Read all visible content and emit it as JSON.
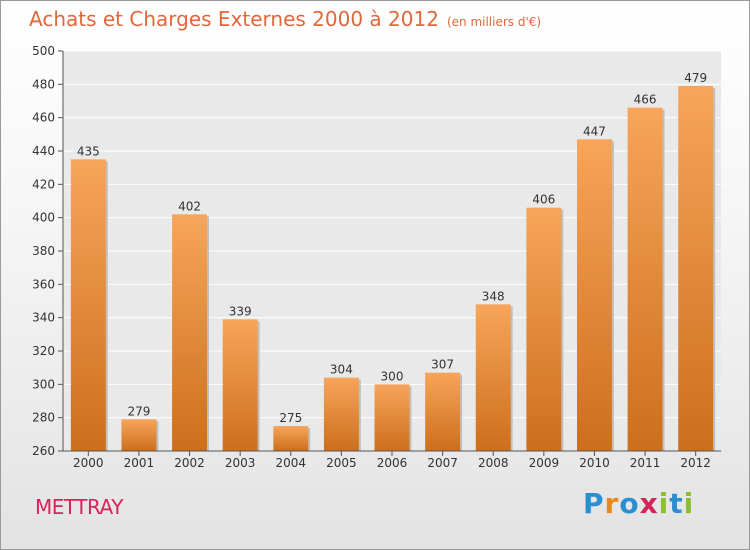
{
  "header": {
    "title": "Achats et Charges Externes 2000 à 2012",
    "unit": "(en milliers d'€)"
  },
  "footer": {
    "city": "METTRAY",
    "logo_text": "Proxiti"
  },
  "colors": {
    "bar_top": "#f7a55a",
    "bar_bottom": "#cc6f1c",
    "title": "#e2673a",
    "city": "#d6245a",
    "plot_background": "#e9e9e9",
    "grid": "#ffffff",
    "logo": [
      "#2a8fd1",
      "#e8891e",
      "#2a8fd1",
      "#d6245a",
      "#8cbf2e",
      "#2a8fd1",
      "#8cbf2e"
    ]
  },
  "chart_data": {
    "type": "bar",
    "title": "Achats et Charges Externes 2000 à 2012",
    "subtitle": "(en milliers d'€)",
    "categories": [
      "2000",
      "2001",
      "2002",
      "2003",
      "2004",
      "2005",
      "2006",
      "2007",
      "2008",
      "2009",
      "2010",
      "2011",
      "2012"
    ],
    "values": [
      435,
      279,
      402,
      339,
      275,
      304,
      300,
      307,
      348,
      406,
      447,
      466,
      479
    ],
    "ylim": [
      260,
      500
    ],
    "yticks": [
      260,
      280,
      300,
      320,
      340,
      360,
      380,
      400,
      420,
      440,
      460,
      480,
      500
    ],
    "grid": true,
    "legend": "none",
    "data_labels": true
  }
}
